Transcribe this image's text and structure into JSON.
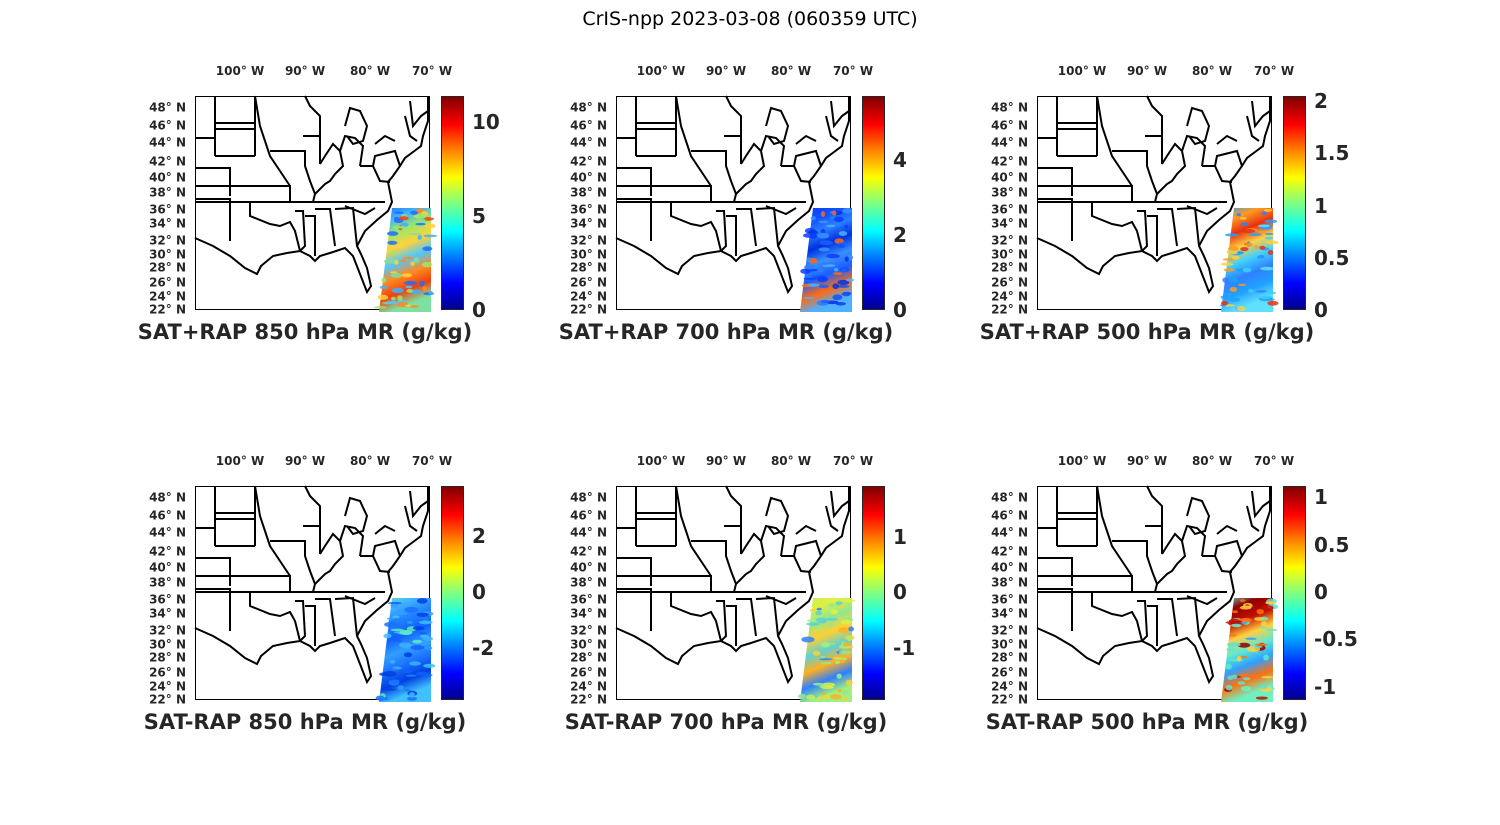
{
  "figure_title": "CrIS-npp 2023-03-08 (060359 UTC)",
  "lon_labels": [
    "100° W",
    "90° W",
    "80° W",
    "70° W"
  ],
  "lat_labels": [
    "48° N",
    "46° N",
    "44° N",
    "42° N",
    "40° N",
    "38° N",
    "36° N",
    "34° N",
    "32° N",
    "30° N",
    "28° N",
    "26° N",
    "24° N",
    "22° N"
  ],
  "colormap": [
    "#00008f",
    "#0000ff",
    "#00ffff",
    "#ffff00",
    "#ff0000",
    "#800000"
  ],
  "panels": [
    {
      "title": "SAT+RAP 850 hPa MR (g/kg)",
      "clim": [
        0,
        11.4
      ],
      "ticks": [
        "0",
        "5",
        "10"
      ],
      "tick_values": [
        0,
        5,
        10
      ],
      "swath_colors": [
        "#1e6cff",
        "#3fb0ff",
        "#9be86a",
        "#ffd23a",
        "#4fc8ff",
        "#ff8a20",
        "#f04010",
        "#7ce0a0"
      ]
    },
    {
      "title": "SAT+RAP 700 hPa MR (g/kg)",
      "clim": [
        0,
        5.7
      ],
      "ticks": [
        "0",
        "2",
        "4"
      ],
      "tick_values": [
        0,
        2,
        4
      ],
      "swath_colors": [
        "#0a3cff",
        "#1050ff",
        "#2a80ff",
        "#0030e0",
        "#3a90ff",
        "#1a60ff",
        "#ff6a10",
        "#4fb0ff"
      ]
    },
    {
      "title": "SAT+RAP 500 hPa MR (g/kg)",
      "clim": [
        0,
        2.05
      ],
      "ticks": [
        "0",
        "0.5",
        "1",
        "1.5",
        "2"
      ],
      "tick_values": [
        0,
        0.5,
        1,
        1.5,
        2
      ],
      "swath_colors": [
        "#2a9cff",
        "#ff9a20",
        "#e83010",
        "#ffd040",
        "#40d0ff",
        "#3080ff",
        "#20a0ff",
        "#60e0ff"
      ]
    },
    {
      "title": "SAT-RAP 850 hPa MR (g/kg)",
      "clim": [
        -3.85,
        3.8
      ],
      "ticks": [
        "-2",
        "0",
        "2"
      ],
      "tick_values": [
        -2,
        0,
        2
      ],
      "swath_colors": [
        "#60e8c0",
        "#40b0ff",
        "#2080ff",
        "#1060ff",
        "#30a0ff",
        "#1a70ff",
        "#0040e0",
        "#40c0ff"
      ]
    },
    {
      "title": "SAT-RAP 700 hPa MR (g/kg)",
      "clim": [
        -1.95,
        1.93
      ],
      "ticks": [
        "-1",
        "0",
        "1"
      ],
      "tick_values": [
        -1,
        0,
        1
      ],
      "swath_colors": [
        "#c0f060",
        "#e0f040",
        "#90e890",
        "#ffd030",
        "#60d0d0",
        "#ffb020",
        "#3080ff",
        "#a0f080"
      ]
    },
    {
      "title": "SAT-RAP 500 hPa MR (g/kg)",
      "clim": [
        -1.14,
        1.12
      ],
      "ticks": [
        "-1",
        "-0.5",
        "0",
        "0.5",
        "1"
      ],
      "tick_values": [
        -1,
        -0.5,
        0,
        0.5,
        1
      ],
      "swath_colors": [
        "#60e0d0",
        "#900000",
        "#c01000",
        "#ffd040",
        "#60e8d0",
        "#30a0ff",
        "#ff7010",
        "#70f0c0"
      ]
    }
  ]
}
